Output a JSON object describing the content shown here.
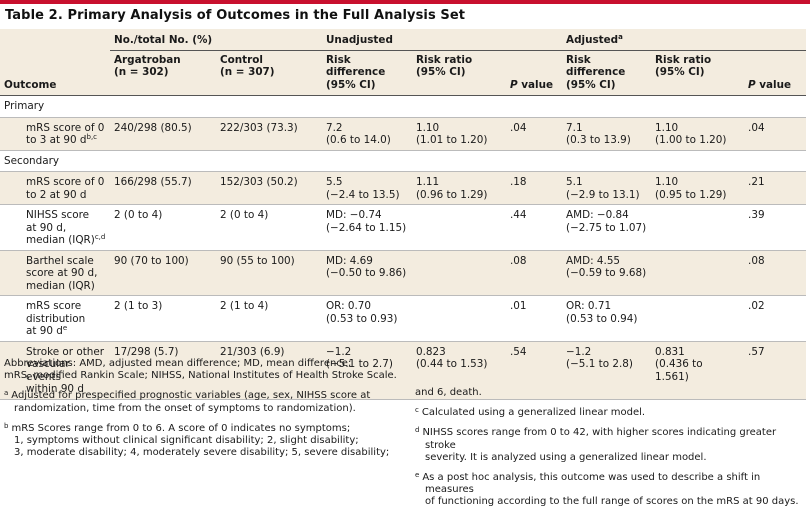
{
  "title": "Table 2. Primary Analysis of Outcomes in the Full Analysis Set",
  "header": {
    "group_no_total": "No./total No. (%)",
    "group_unadjusted": "Unadjusted",
    "group_adjusted": "Adjusted",
    "group_adjusted_sup": "a",
    "outcome": "Outcome",
    "argatroban_1": "Argatroban",
    "argatroban_2": "(n = 302)",
    "control_1": "Control",
    "control_2": "(n = 307)",
    "risk_diff_1": "Risk difference",
    "risk_diff_2": "(95% CI)",
    "risk_ratio_1": "Risk ratio",
    "risk_ratio_2": "(95% CI)",
    "p_value_p": "P",
    "p_value_rest": " value",
    "adj_risk_diff_1": "Risk difference",
    "adj_risk_diff_2": "(95% CI)",
    "adj_risk_ratio_1": "Risk ratio",
    "adj_risk_ratio_2": "(95% CI)",
    "adj_p_value_p": "P",
    "adj_p_value_rest": " value"
  },
  "sections": {
    "primary": "Primary",
    "secondary": "Secondary"
  },
  "rows": [
    {
      "outcome_lines": [
        "mRS score of 0",
        "to 3 at 90 d"
      ],
      "outcome_sup": "b,c",
      "argatroban": "240/298 (80.5)",
      "control": "222/303 (73.3)",
      "u_rd_1": "7.2",
      "u_rd_2": "(0.6 to 14.0)",
      "u_rr_1": "1.10",
      "u_rr_2": "(1.01 to 1.20)",
      "u_p": ".04",
      "a_rd_1": "7.1",
      "a_rd_2": "(0.3 to 13.9)",
      "a_rr_1": "1.10",
      "a_rr_2": "(1.00 to 1.20)",
      "a_p": ".04"
    },
    {
      "outcome_lines": [
        "mRS score of 0",
        "to 2 at 90 d"
      ],
      "outcome_sup": "",
      "argatroban": "166/298 (55.7)",
      "control": "152/303 (50.2)",
      "u_rd_1": "5.5",
      "u_rd_2": "(−2.4 to 13.5)",
      "u_rr_1": "1.11",
      "u_rr_2": "(0.96 to 1.29)",
      "u_p": ".18",
      "a_rd_1": "5.1",
      "a_rd_2": "(−2.9 to 13.1)",
      "a_rr_1": "1.10",
      "a_rr_2": "(0.95 to 1.29)",
      "a_p": ".21"
    },
    {
      "outcome_lines": [
        "NIHSS score",
        "at 90 d,",
        "median (IQR)"
      ],
      "outcome_sup": "c,d",
      "argatroban": "2 (0 to 4)",
      "control": "2 (0 to 4)",
      "u_rd_1": "MD: −0.74",
      "u_rd_2": "(−2.64 to 1.15)",
      "u_rr_1": "",
      "u_rr_2": "",
      "u_p": ".44",
      "a_rd_1": "AMD: −0.84",
      "a_rd_2": "(−2.75 to 1.07)",
      "a_rr_1": "",
      "a_rr_2": "",
      "a_p": ".39"
    },
    {
      "outcome_lines": [
        "Barthel scale",
        "score at 90 d,",
        "median (IQR)"
      ],
      "outcome_sup": "",
      "argatroban": "90 (70 to 100)",
      "control": "90 (55 to 100)",
      "u_rd_1": "MD: 4.69",
      "u_rd_2": "(−0.50 to 9.86)",
      "u_rr_1": "",
      "u_rr_2": "",
      "u_p": ".08",
      "a_rd_1": "AMD: 4.55",
      "a_rd_2": "(−0.59 to 9.68)",
      "a_rr_1": "",
      "a_rr_2": "",
      "a_p": ".08"
    },
    {
      "outcome_lines": [
        "mRS score",
        "distribution",
        "at 90 d"
      ],
      "outcome_sup": "e",
      "argatroban": "2 (1 to 3)",
      "control": "2 (1 to 4)",
      "u_rd_1": "OR: 0.70",
      "u_rd_2": "(0.53 to 0.93)",
      "u_rr_1": "",
      "u_rr_2": "",
      "u_p": ".01",
      "a_rd_1": "OR: 0.71",
      "a_rd_2": "(0.53 to 0.94)",
      "a_rr_1": "",
      "a_rr_2": "",
      "a_p": ".02"
    },
    {
      "outcome_lines": [
        "Stroke or other",
        "vascular events",
        "within 90 d"
      ],
      "outcome_sup": "",
      "argatroban": "17/298 (5.7)",
      "control": "21/303 (6.9)",
      "u_rd_1": "−1.2",
      "u_rd_2": "(−5.1 to 2.7)",
      "u_rr_1": "0.823",
      "u_rr_2": "(0.44 to 1.53)",
      "u_p": ".54",
      "a_rd_1": "−1.2",
      "a_rd_2": "(−5.1 to 2.8)",
      "a_rr_1": "0.831",
      "a_rr_2": "(0.436 to",
      "a_rr_3": "1.561)",
      "a_p": ".57"
    }
  ],
  "footnotes": {
    "abbreviations_1": "Abbreviations: AMD, adjusted mean difference; MD, mean difference;",
    "abbreviations_2": "mRS, modified Rankin Scale; NIHSS, National Institutes of Health Stroke Scale.",
    "a_label": "a",
    "a_1": "Adjusted for prespecified prognostic variables (age, sex, NIHSS score at",
    "a_2": "randomization, time from the onset of symptoms to randomization).",
    "b_label": "b",
    "b_1": "mRS Scores range from 0 to 6. A score of 0 indicates no symptoms;",
    "b_2": "1, symptoms without clinical significant disability; 2, slight disability;",
    "b_3": "3, moderate disability; 4, moderately severe disability; 5, severe disability;",
    "b_cont": "and 6, death.",
    "c_label": "c",
    "c_1": "Calculated using a generalized linear model.",
    "d_label": "d",
    "d_1": "NIHSS scores range from 0 to 42, with higher scores indicating greater stroke",
    "d_2": "severity. It is analyzed using a generalized linear model.",
    "e_label": "e",
    "e_1": "As a post hoc analysis, this outcome was used to describe a shift in measures",
    "e_2": "of functioning according to the full range of scores on the mRS at 90 days."
  }
}
